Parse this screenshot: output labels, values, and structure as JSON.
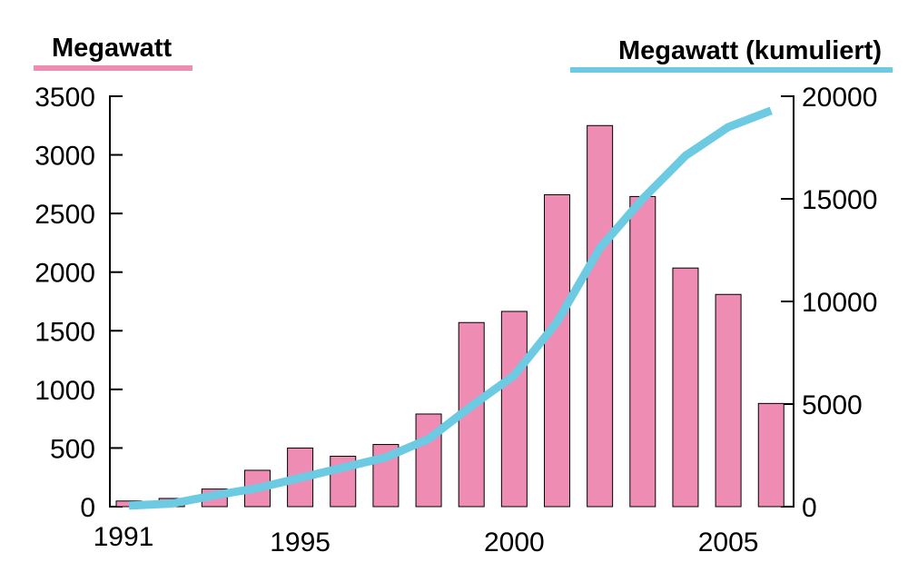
{
  "chart_data": {
    "type": "bar",
    "left_axis_label": "Megawatt",
    "right_axis_label": "Megawatt (kumuliert)",
    "x_tick_labels": [
      "1991",
      "1995",
      "2000",
      "2005"
    ],
    "categories": [
      1991,
      1992,
      1993,
      1994,
      1995,
      1996,
      1997,
      1998,
      1999,
      2000,
      2001,
      2002,
      2003,
      2004,
      2005,
      2006
    ],
    "series": [
      {
        "type": "bar",
        "axis": "left",
        "color": "#ef8cb4",
        "values": [
          48,
          70,
          150,
          310,
          500,
          430,
          530,
          790,
          1570,
          1665,
          2660,
          3250,
          2645,
          2035,
          1810,
          880
        ]
      },
      {
        "type": "line",
        "axis": "right",
        "color": "#6ccae3",
        "values": [
          50,
          150,
          550,
          900,
          1400,
          1900,
          2400,
          3300,
          4900,
          6400,
          9000,
          12600,
          15000,
          17100,
          18500,
          19300
        ]
      }
    ],
    "left_axis": {
      "ylim": [
        0,
        3500
      ],
      "ticks": [
        "0",
        "500",
        "1000",
        "1500",
        "2000",
        "2500",
        "3000",
        "3500"
      ]
    },
    "right_axis": {
      "ylim": [
        0,
        20000
      ],
      "ticks": [
        "0",
        "5000",
        "10000",
        "15000",
        "20000"
      ]
    },
    "grid": false
  }
}
